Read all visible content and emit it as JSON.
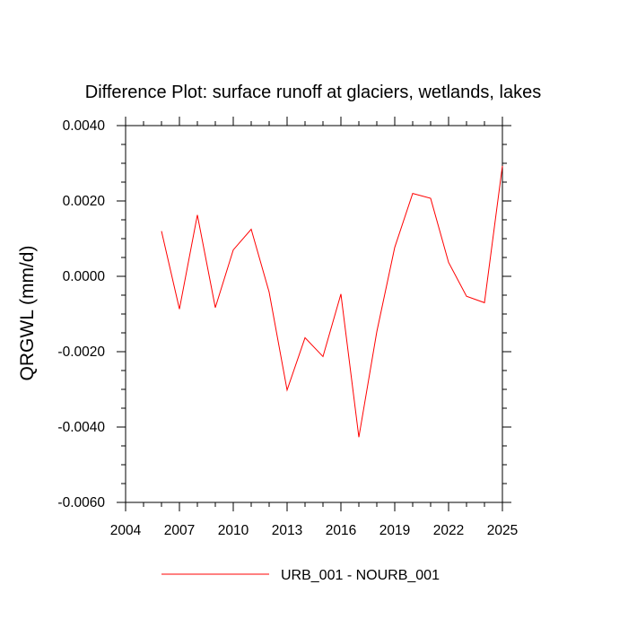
{
  "chart_data": {
    "type": "line",
    "title": "Difference Plot: surface runoff at glaciers, wetlands, lakes",
    "ylabel": "QRGWL  (mm/d)",
    "xlabel": "",
    "xlim": [
      2004,
      2025
    ],
    "ylim": [
      -0.006,
      0.004
    ],
    "x_major_ticks": [
      2004,
      2007,
      2010,
      2013,
      2016,
      2019,
      2022,
      2025
    ],
    "x_tick_labels": [
      "2004",
      "2007",
      "2010",
      "2013",
      "2016",
      "2019",
      "2022",
      "2025"
    ],
    "y_major_ticks": [
      -0.006,
      -0.004,
      -0.002,
      0.0,
      0.002,
      0.004
    ],
    "y_tick_labels": [
      "-0.0060",
      "-0.0040",
      "-0.0020",
      "0.0000",
      "0.0020",
      "0.0040"
    ],
    "grid": false,
    "legend_position": "bottom",
    "series": [
      {
        "name": "URB_001 - NOURB_001",
        "color": "#ff0000",
        "x": [
          2006,
          2007,
          2008,
          2009,
          2010,
          2011,
          2012,
          2013,
          2014,
          2015,
          2016,
          2017,
          2018,
          2019,
          2020,
          2021,
          2022,
          2023,
          2024,
          2025
        ],
        "y": [
          0.0012,
          -0.00087,
          0.00163,
          -0.00083,
          0.0007,
          0.00125,
          -0.00042,
          -0.00302,
          -0.00163,
          -0.00213,
          -0.00047,
          -0.00427,
          -0.00147,
          0.00077,
          0.0022,
          0.00207,
          0.00037,
          -0.00053,
          -0.0007,
          0.00293
        ]
      }
    ]
  }
}
